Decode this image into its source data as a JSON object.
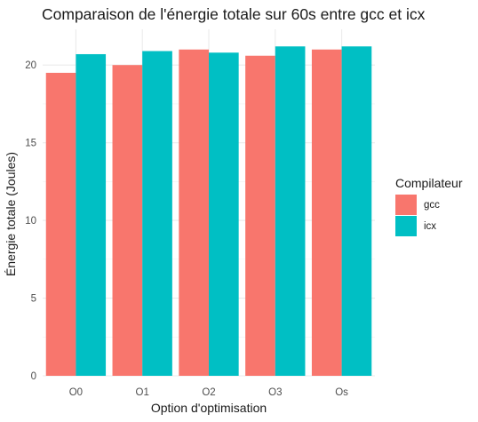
{
  "chart_data": {
    "type": "bar",
    "title": "Comparaison de l'énergie totale sur 60s entre gcc et icx",
    "xlabel": "Option d'optimisation",
    "ylabel": "Énergie totale (Joules)",
    "categories": [
      "O0",
      "O1",
      "O2",
      "O3",
      "Os"
    ],
    "series": [
      {
        "name": "gcc",
        "color": "#F8766D",
        "values": [
          19.5,
          20.0,
          21.0,
          20.6,
          21.0
        ]
      },
      {
        "name": "icx",
        "color": "#00BFC4",
        "values": [
          20.7,
          20.9,
          20.8,
          21.2,
          21.2
        ]
      }
    ],
    "ylim": [
      0,
      22.3
    ],
    "yticks": [
      0,
      5,
      10,
      15,
      20
    ],
    "grid": true,
    "legend": {
      "title": "Compilateur",
      "position": "right"
    }
  }
}
